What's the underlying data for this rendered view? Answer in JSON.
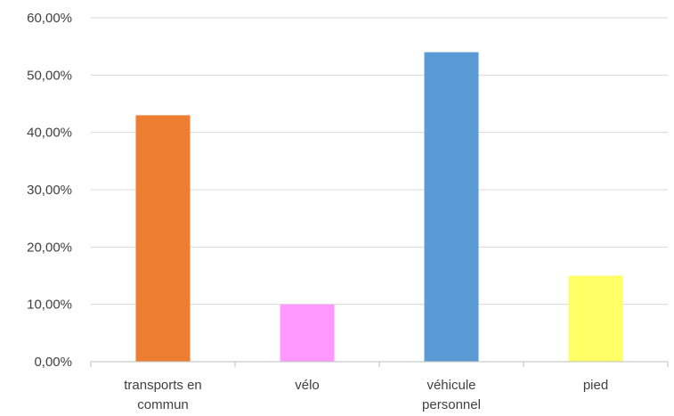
{
  "chart_data": {
    "type": "bar",
    "categories": [
      [
        "transports en",
        "commun"
      ],
      [
        "vélo"
      ],
      [
        "véhicule",
        "personnel"
      ],
      [
        "pied"
      ]
    ],
    "values": [
      43.0,
      10.0,
      54.0,
      15.0
    ],
    "colors": [
      "#ed7d31",
      "#ff99ff",
      "#5b9bd5",
      "#ffff66"
    ],
    "ylim": [
      0,
      60
    ],
    "yticks": [
      0,
      10,
      20,
      30,
      40,
      50,
      60
    ],
    "ytick_labels": [
      "0,00%",
      "10,00%",
      "20,00%",
      "30,00%",
      "40,00%",
      "50,00%",
      "60,00%"
    ],
    "grid": true,
    "legend": "none"
  }
}
